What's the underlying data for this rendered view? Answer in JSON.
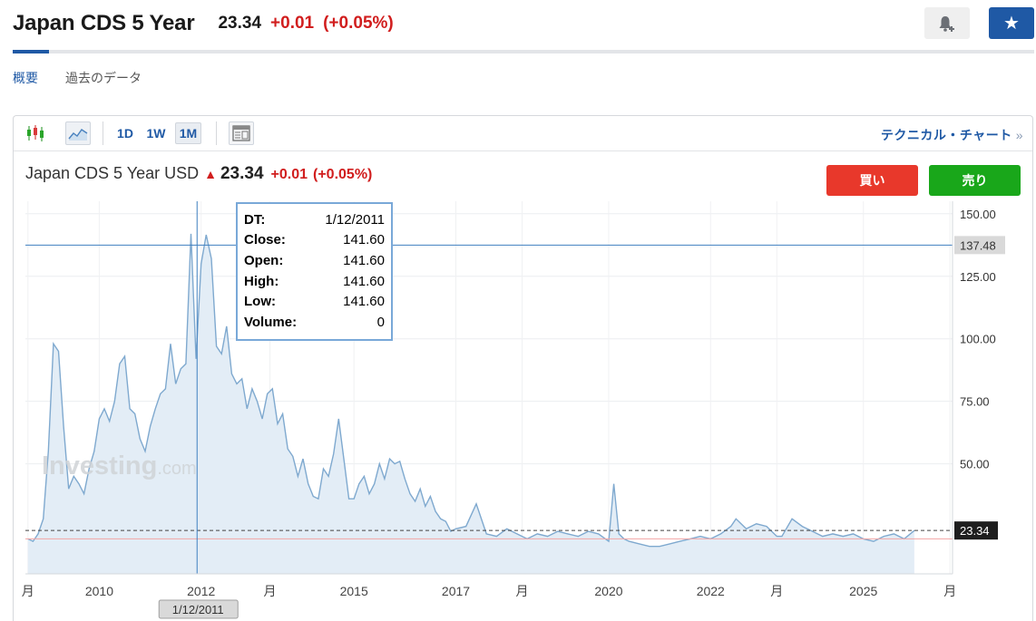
{
  "header": {
    "title": "Japan CDS 5 Year",
    "price": "23.34",
    "change": "+0.01",
    "change_pct": "(+0.05%)"
  },
  "subnav": {
    "items": [
      "概要",
      "過去のデータ"
    ]
  },
  "toolbar": {
    "periods": [
      "1D",
      "1W",
      "1M"
    ],
    "selected_period": "1M",
    "technical_link": "テクニカル・チャート",
    "chevron": "»"
  },
  "chart_header": {
    "name": "Japan CDS 5 Year USD",
    "price": "23.34",
    "change": "+0.01",
    "change_pct": "(+0.05%)",
    "buy_label": "買い",
    "sell_label": "売り"
  },
  "tooltip": {
    "rows": [
      {
        "label": "DT:",
        "value": "1/12/2011"
      },
      {
        "label": "Close:",
        "value": "141.60"
      },
      {
        "label": "Open:",
        "value": "141.60"
      },
      {
        "label": "High:",
        "value": "141.60"
      },
      {
        "label": "Low:",
        "value": "141.60"
      },
      {
        "label": "Volume:",
        "value": "0"
      }
    ]
  },
  "watermark": {
    "main": "Investing",
    "suffix": ".com"
  },
  "colors": {
    "accent": "#1f59a5",
    "negative_red": "#d11e1e",
    "buy": "#e8382b",
    "sell": "#19a71a",
    "line": "#7fa9cf",
    "area_fill": "#e3edf6",
    "crosshair": "#3f7fc0"
  },
  "chart_data": {
    "type": "area",
    "title": "Japan CDS 5 Year USD",
    "ylim": [
      6,
      155
    ],
    "xlim": [
      2008.55,
      2026.75
    ],
    "y_ticks": [
      "150.00",
      "125.00",
      "100.00",
      "75.00",
      "50.00"
    ],
    "x_ticks": [
      {
        "x": 2008.6,
        "label": "月"
      },
      {
        "x": 2010.0,
        "label": "2010"
      },
      {
        "x": 2012.0,
        "label": "2012"
      },
      {
        "x": 2013.35,
        "label": "月"
      },
      {
        "x": 2015.0,
        "label": "2015"
      },
      {
        "x": 2017.0,
        "label": "2017"
      },
      {
        "x": 2018.3,
        "label": "月"
      },
      {
        "x": 2020.0,
        "label": "2020"
      },
      {
        "x": 2022.0,
        "label": "2022"
      },
      {
        "x": 2023.3,
        "label": "月"
      },
      {
        "x": 2025.0,
        "label": "2025"
      },
      {
        "x": 2026.7,
        "label": "月"
      }
    ],
    "crosshair": {
      "x": 2011.92,
      "y": 137.48,
      "x_label": "1/12/2011",
      "y_label": "137.48"
    },
    "last_price": {
      "value": 23.34,
      "label": "23.34"
    },
    "reference_line": 20.0,
    "grid": true,
    "series": [
      {
        "x": [
          2008.6,
          2008.7,
          2008.8,
          2008.9,
          2009.0,
          2009.1,
          2009.2,
          2009.3,
          2009.4,
          2009.5,
          2009.6,
          2009.7,
          2009.8,
          2009.9,
          2010.0,
          2010.1,
          2010.2,
          2010.3,
          2010.4,
          2010.5,
          2010.6,
          2010.7,
          2010.8,
          2010.9,
          2011.0,
          2011.1,
          2011.2,
          2011.3,
          2011.4,
          2011.5,
          2011.6,
          2011.7,
          2011.8,
          2011.9,
          2012.0,
          2012.1,
          2012.2,
          2012.3,
          2012.4,
          2012.5,
          2012.6,
          2012.7,
          2012.8,
          2012.9,
          2013.0,
          2013.1,
          2013.2,
          2013.3,
          2013.4,
          2013.5,
          2013.6,
          2013.7,
          2013.8,
          2013.9,
          2014.0,
          2014.1,
          2014.2,
          2014.3,
          2014.4,
          2014.5,
          2014.6,
          2014.7,
          2014.8,
          2014.9,
          2015.0,
          2015.1,
          2015.2,
          2015.3,
          2015.4,
          2015.5,
          2015.6,
          2015.7,
          2015.8,
          2015.9,
          2016.0,
          2016.1,
          2016.2,
          2016.3,
          2016.4,
          2016.5,
          2016.6,
          2016.7,
          2016.8,
          2016.9,
          2017.0,
          2017.2,
          2017.4,
          2017.6,
          2017.8,
          2018.0,
          2018.2,
          2018.4,
          2018.6,
          2018.8,
          2019.0,
          2019.2,
          2019.4,
          2019.6,
          2019.8,
          2020.0,
          2020.1,
          2020.2,
          2020.3,
          2020.4,
          2020.6,
          2020.8,
          2021.0,
          2021.2,
          2021.4,
          2021.6,
          2021.8,
          2022.0,
          2022.2,
          2022.4,
          2022.5,
          2022.7,
          2022.9,
          2023.1,
          2023.3,
          2023.4,
          2023.6,
          2023.8,
          2024.0,
          2024.2,
          2024.4,
          2024.6,
          2024.8,
          2025.0,
          2025.2,
          2025.4,
          2025.6,
          2025.8,
          2026.0
        ],
        "y": [
          20,
          19,
          22,
          28,
          55,
          98,
          95,
          65,
          40,
          45,
          42,
          38,
          48,
          55,
          68,
          72,
          67,
          75,
          90,
          93,
          72,
          70,
          60,
          55,
          65,
          72,
          78,
          80,
          98,
          82,
          88,
          90,
          142,
          92,
          130,
          141.6,
          132,
          97,
          94,
          105,
          86,
          82,
          84,
          72,
          80,
          75,
          68,
          78,
          80,
          66,
          70,
          56,
          53,
          45,
          52,
          42,
          37,
          36,
          48,
          45,
          54,
          68,
          52,
          36,
          36,
          42,
          45,
          38,
          42,
          50,
          44,
          52,
          50,
          51,
          44,
          38,
          35,
          40,
          33,
          37,
          31,
          28,
          27,
          23,
          24,
          25,
          34,
          22,
          21,
          24,
          22,
          20,
          22,
          21,
          23,
          22,
          21,
          23,
          22,
          19,
          42,
          22,
          20,
          19,
          18,
          17,
          17,
          18,
          19,
          20,
          21,
          20,
          22,
          25,
          28,
          24,
          26,
          25,
          21,
          21,
          28,
          25,
          23,
          21,
          22,
          21,
          22,
          20,
          19,
          21,
          22,
          20,
          23.34
        ]
      }
    ]
  }
}
